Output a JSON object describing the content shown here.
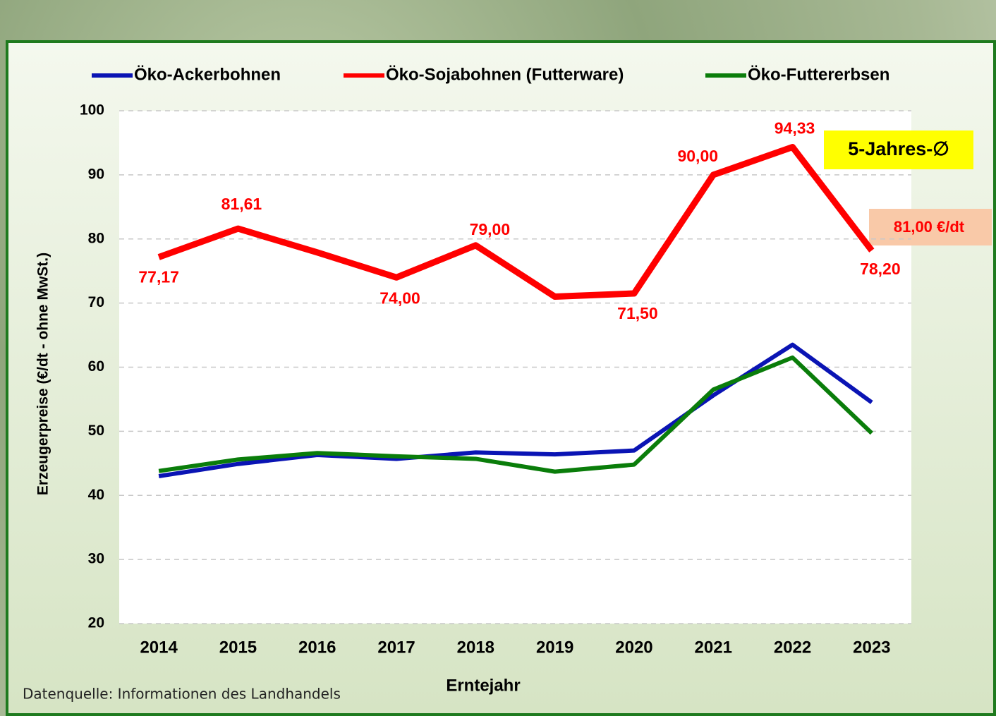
{
  "chart_data": {
    "type": "line",
    "y_axis_label": "Erzeugerpreise (€/dt - ohne MwSt.)",
    "x_axis_label": "Erntejahr",
    "source": "Datenquelle: Informationen des Landhandels",
    "annotations": [
      "5-Jahres-∅",
      "81,00 €/dt"
    ],
    "categories": [
      "2014",
      "2015",
      "2016",
      "2017",
      "2018",
      "2019",
      "2020",
      "2021",
      "2022",
      "2023"
    ],
    "series": [
      {
        "name": "Öko-Ackerbohnen",
        "color": "#0a14b4",
        "values": [
          43.0,
          44.9,
          46.3,
          45.7,
          46.7,
          46.4,
          47.0,
          55.6,
          63.5,
          54.5
        ]
      },
      {
        "name": "Öko-Sojabohnen (Futterware)",
        "color": "#ff0000",
        "values": [
          77.17,
          81.61,
          77.9,
          74.0,
          79.0,
          71.0,
          71.5,
          90.0,
          94.33,
          78.2
        ],
        "value_labels": [
          "77,17",
          "81,61",
          null,
          "74,00",
          "79,00",
          null,
          "71,50",
          "90,00",
          "94,33",
          "78,20"
        ]
      },
      {
        "name": "Öko-Futtererbsen",
        "color": "#0a7d0a",
        "values": [
          43.8,
          45.6,
          46.6,
          46.1,
          45.7,
          43.7,
          44.8,
          56.5,
          61.5,
          49.7
        ]
      }
    ],
    "ylim": [
      20,
      100
    ],
    "yticks": [
      20,
      30,
      40,
      50,
      60,
      70,
      80,
      90,
      100
    ],
    "grid": true
  }
}
